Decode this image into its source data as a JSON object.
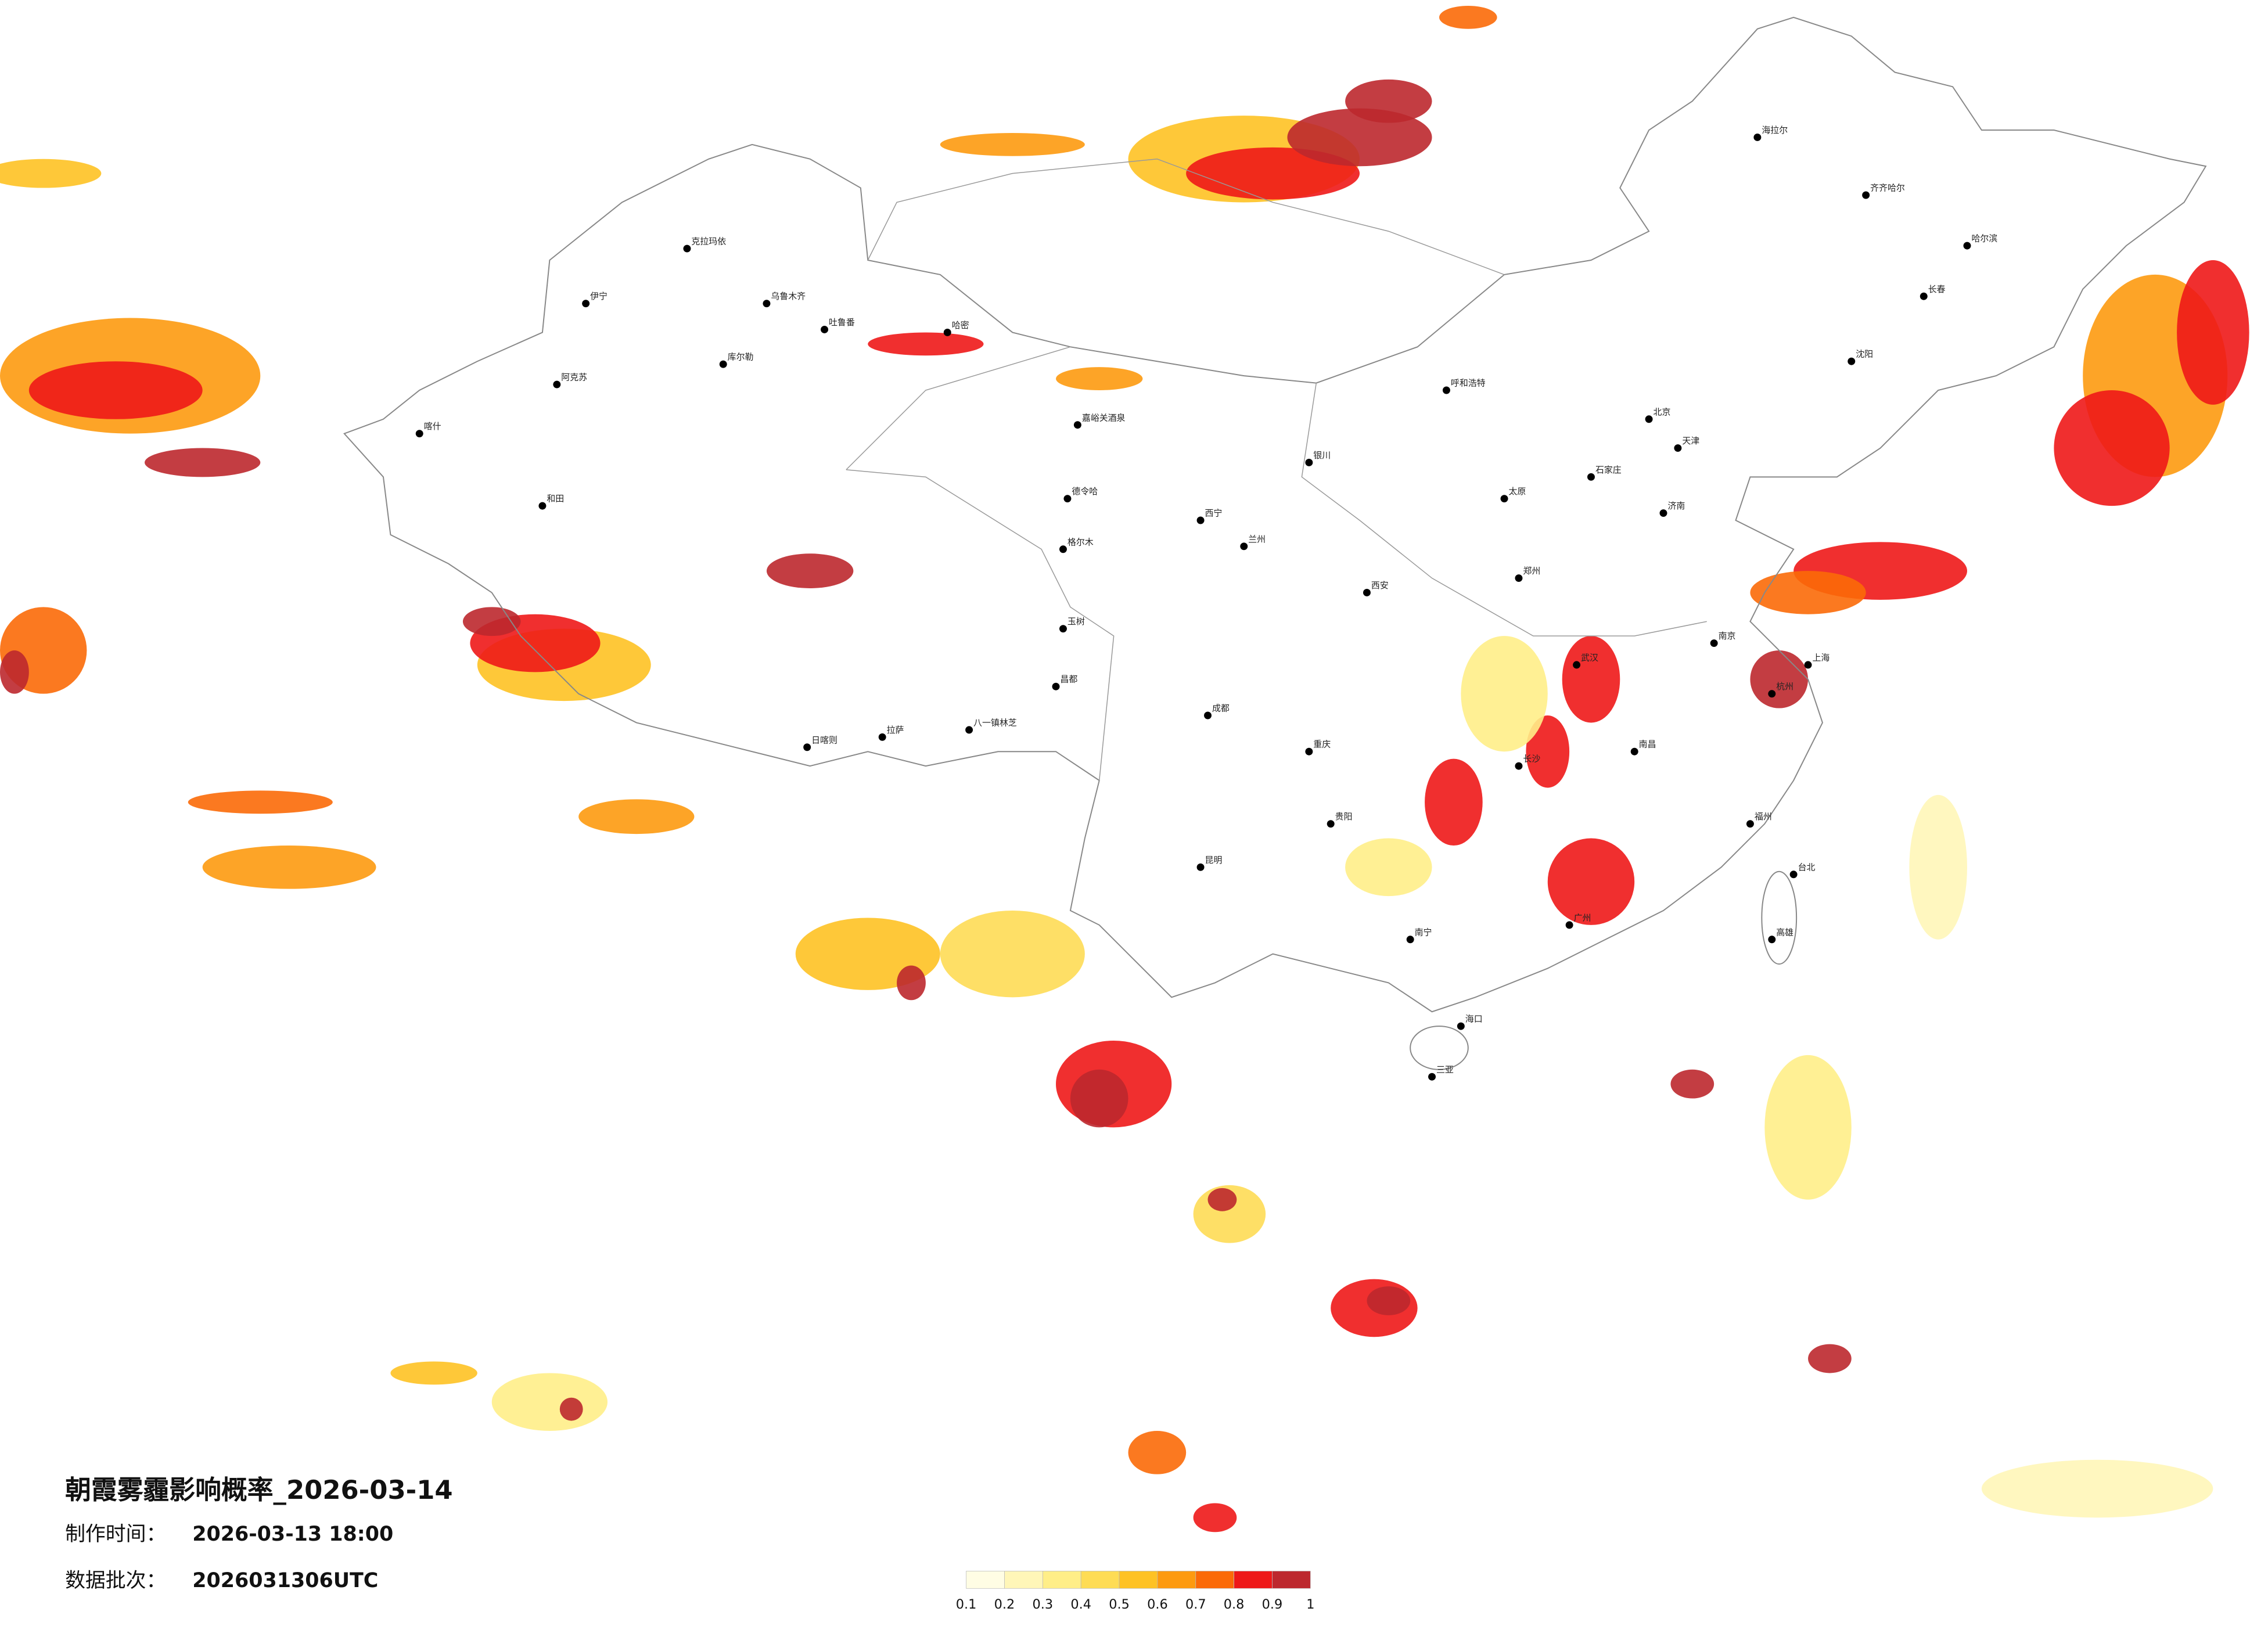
{
  "map": {
    "title": "朝霞雾霾影响概率_2026-03-14",
    "production_time": {
      "label": "制作时间：",
      "value": "2026-03-13 18:00"
    },
    "data_batch": {
      "label": "数据批次：",
      "value": "2026031306UTC"
    },
    "colorbar": {
      "ticks": [
        0.1,
        0.2,
        0.3,
        0.4,
        0.5,
        0.6,
        0.7,
        0.8,
        0.9,
        1
      ],
      "colors": [
        "#fffde4",
        "#fff6b8",
        "#ffee88",
        "#fedc55",
        "#fec224",
        "#fd9a10",
        "#fb6a08",
        "#ee1818",
        "#bd282e"
      ]
    },
    "cities": [
      "克拉玛依",
      "乌鲁木齐",
      "吐鲁番",
      "哈密",
      "伊宁",
      "阿克苏",
      "喀什",
      "和田",
      "库尔勒",
      "嘉峪关酒泉",
      "德令哈",
      "格尔木",
      "玉树",
      "拉萨",
      "日喀则",
      "八一镇林芝",
      "昌都",
      "西宁",
      "兰州",
      "银川",
      "呼和浩特",
      "北京",
      "天津",
      "石家庄",
      "太原",
      "济南",
      "郑州",
      "西安",
      "成都",
      "重庆",
      "武汉",
      "南京",
      "上海",
      "杭州",
      "长沙",
      "南昌",
      "福州",
      "广州",
      "南宁",
      "昆明",
      "贵阳",
      "海口",
      "三亚",
      "哈尔滨",
      "长春",
      "沈阳",
      "海拉尔",
      "齐齐哈尔",
      "台北",
      "高雄"
    ]
  }
}
